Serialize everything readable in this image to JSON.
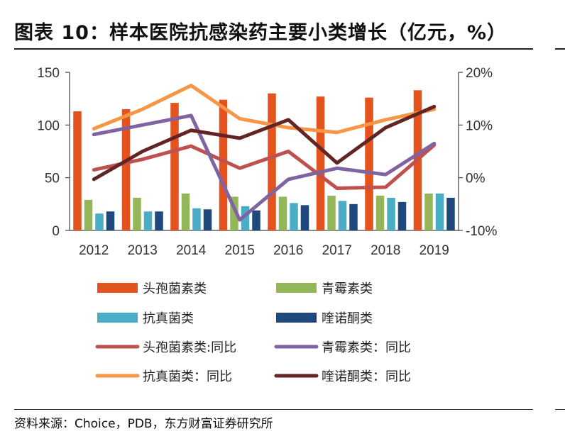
{
  "title": "图表 10：样本医院抗感染药主要小类增长（亿元，%）",
  "source": "资料来源：Choice，PDB，东方财富证券研究所",
  "chart_data": {
    "type": "bar",
    "categories": [
      "2012",
      "2013",
      "2014",
      "2015",
      "2016",
      "2017",
      "2018",
      "2019"
    ],
    "y_left": {
      "min": 0,
      "max": 150,
      "ticks": [
        0,
        50,
        100,
        150
      ],
      "tick_labels": [
        "0",
        "50",
        "100",
        "150"
      ]
    },
    "y_right": {
      "min": -10,
      "max": 20,
      "ticks": [
        -10,
        0,
        10,
        20
      ],
      "tick_labels": [
        "-10%",
        "0%",
        "10%",
        "20%"
      ]
    },
    "grid": false,
    "legend_position": "bottom",
    "bar_series": [
      {
        "name": "头孢菌素类",
        "color": "#E4521E",
        "values": [
          113,
          115,
          121,
          124,
          130,
          127,
          126,
          133
        ]
      },
      {
        "name": "青霉素类",
        "color": "#93B758",
        "values": [
          29,
          31,
          35,
          32,
          32,
          33,
          33,
          35
        ]
      },
      {
        "name": "抗真菌类",
        "color": "#4BACC6",
        "values": [
          16,
          18,
          21,
          23,
          26,
          28,
          31,
          35
        ]
      },
      {
        "name": "喹诺酮类",
        "color": "#1F497D",
        "values": [
          18,
          18,
          20,
          19,
          24,
          25,
          27,
          31
        ]
      }
    ],
    "line_series": [
      {
        "name": "头孢菌素类:同比",
        "color": "#C0504D",
        "values": [
          1.5,
          3.5,
          6.0,
          1.8,
          5.0,
          -2.0,
          -1.8,
          6.2
        ]
      },
      {
        "name": "青霉素类：同比",
        "color": "#8064A2",
        "values": [
          8.2,
          10.0,
          11.8,
          -8.0,
          -0.3,
          1.8,
          0.6,
          6.5
        ]
      },
      {
        "name": "抗真菌类：同比",
        "color": "#F79646",
        "values": [
          9.3,
          13.0,
          17.5,
          11.2,
          9.5,
          8.6,
          11.0,
          13.0
        ]
      },
      {
        "name": "喹诺酮类：同比",
        "color": "#632523",
        "values": [
          -0.3,
          5.0,
          9.0,
          7.5,
          11.0,
          2.8,
          9.5,
          13.5
        ]
      }
    ]
  }
}
